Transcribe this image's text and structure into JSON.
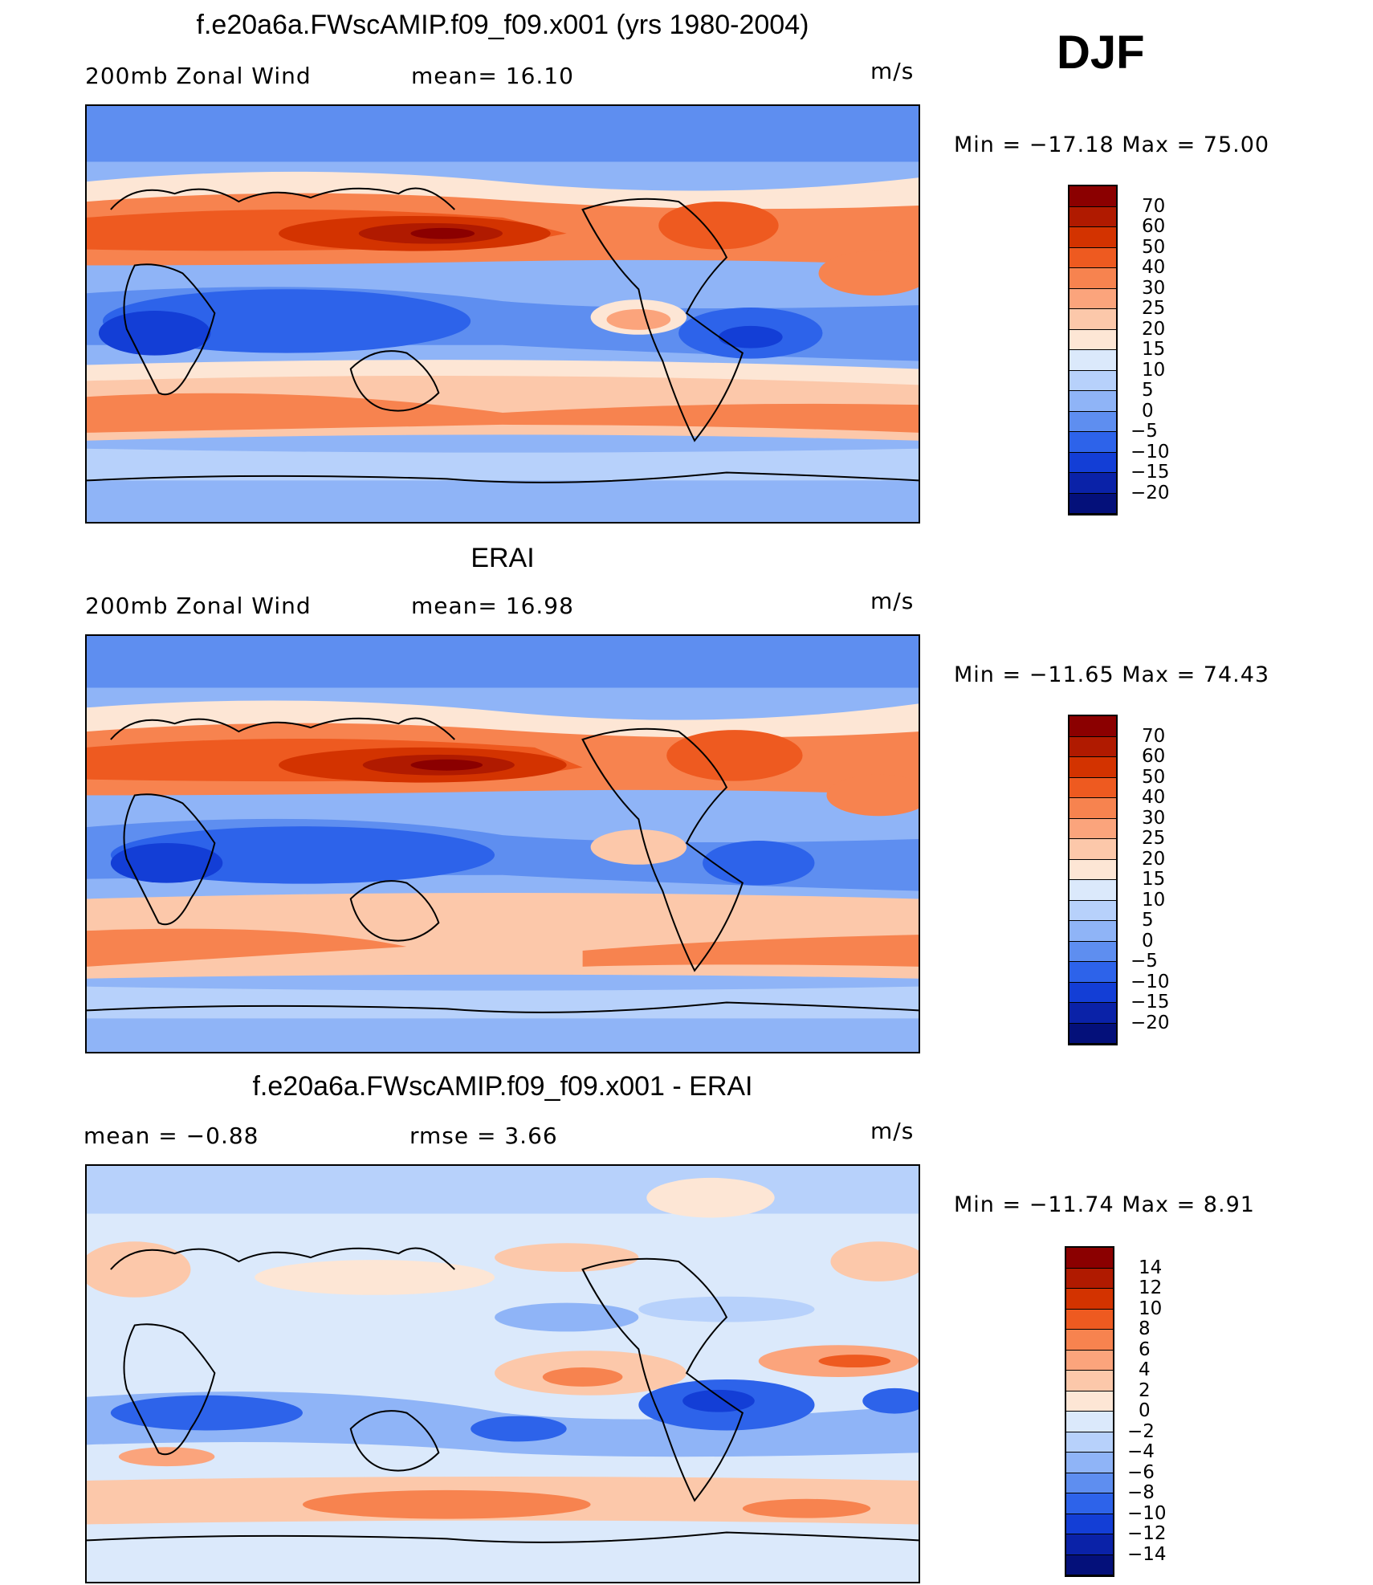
{
  "season": "DJF",
  "panels": [
    {
      "title": "f.e20a6a.FWscAMIP.f09_f09.x001 (yrs 1980-2004)",
      "left_label": "200mb  Zonal  Wind",
      "middle_label": "mean=   16.10",
      "units": "m/s",
      "minmax": "Min  =  −17.18  Max  =    75.00",
      "colorbar": {
        "labels": [
          "70",
          "60",
          "50",
          "40",
          "30",
          "25",
          "20",
          "15",
          "10",
          "5",
          "0",
          "−5",
          "−10",
          "−15",
          "−20"
        ],
        "colors": [
          "#8b0000",
          "#b01a00",
          "#d33300",
          "#ee5a20",
          "#f7834f",
          "#fba47c",
          "#fcc8aa",
          "#fde6d5",
          "#dbe9fb",
          "#b7d1fb",
          "#8fb4f7",
          "#5e8ef0",
          "#2d63ea",
          "#133ed6",
          "#0a22a8",
          "#04107a"
        ]
      }
    },
    {
      "title": "ERAI",
      "left_label": "200mb  Zonal  Wind",
      "middle_label": "mean=   16.98",
      "units": "m/s",
      "minmax": "Min  =  −11.65  Max  =    74.43",
      "colorbar": {
        "labels": [
          "70",
          "60",
          "50",
          "40",
          "30",
          "25",
          "20",
          "15",
          "10",
          "5",
          "0",
          "−5",
          "−10",
          "−15",
          "−20"
        ],
        "colors": [
          "#8b0000",
          "#b01a00",
          "#d33300",
          "#ee5a20",
          "#f7834f",
          "#fba47c",
          "#fcc8aa",
          "#fde6d5",
          "#dbe9fb",
          "#b7d1fb",
          "#8fb4f7",
          "#5e8ef0",
          "#2d63ea",
          "#133ed6",
          "#0a22a8",
          "#04107a"
        ]
      }
    },
    {
      "title": "f.e20a6a.FWscAMIP.f09_f09.x001 - ERAI",
      "left_label": "mean  =     −0.88",
      "middle_label": "rmse  =      3.66",
      "units": "m/s",
      "minmax": "Min  =  −11.74  Max  =      8.91",
      "colorbar": {
        "labels": [
          "14",
          "12",
          "10",
          "8",
          "6",
          "4",
          "2",
          "0",
          "−2",
          "−4",
          "−6",
          "−8",
          "−10",
          "−12",
          "−14"
        ],
        "colors": [
          "#8b0000",
          "#b01a00",
          "#d33300",
          "#ee5a20",
          "#f7834f",
          "#fba47c",
          "#fcc8aa",
          "#fde6d5",
          "#dbe9fb",
          "#b7d1fb",
          "#8fb4f7",
          "#5e8ef0",
          "#2d63ea",
          "#133ed6",
          "#0a22a8",
          "#04107a"
        ]
      }
    }
  ]
}
